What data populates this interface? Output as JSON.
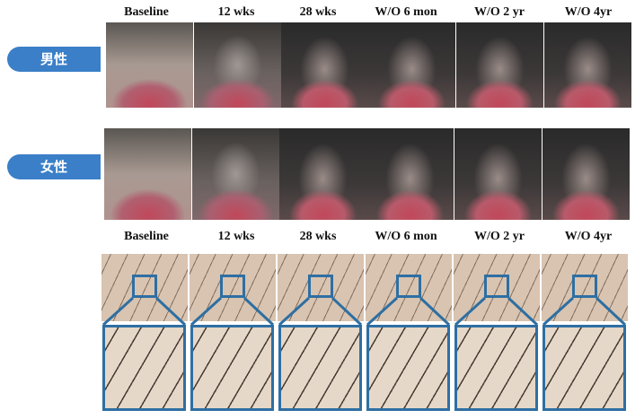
{
  "timepoints": [
    "Baseline",
    "12 wks",
    "28 wks",
    "W/O 6 mon",
    "W/O 2 yr",
    "W/O 4yr"
  ],
  "rows": {
    "male": "男性",
    "female": "女性"
  },
  "colors": {
    "accent": "#3a7fc8",
    "zoom_frame": "#2e6fa3"
  }
}
